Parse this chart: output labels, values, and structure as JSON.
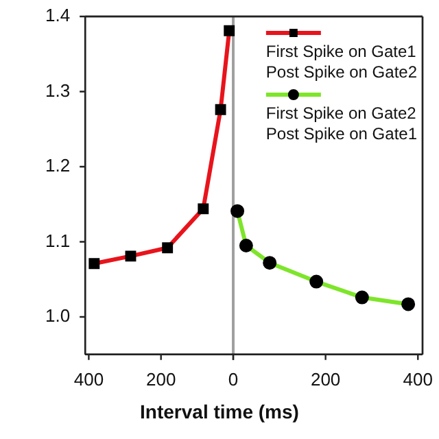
{
  "chart_data": [
    {
      "type": "line",
      "xlabel": "Interval time (ms)",
      "xlim": [
        410,
        0
      ],
      "xticks": [
        400,
        200,
        0
      ],
      "ylim": [
        0.95,
        1.4
      ],
      "yticks": [
        {
          "value": 1,
          "label": "1.0"
        },
        1.1,
        1.2,
        1.3,
        1.4
      ],
      "grid": false,
      "legend": "top right",
      "ref_lines": [
        {
          "axis": "x",
          "value": 0,
          "color": "#a0a0a0"
        }
      ],
      "series": [
        {
          "name": "First Spike on Gate1\nPost Spike on Gate2",
          "color": "#e8141c",
          "marker": "square",
          "x": [
            385,
            284,
            182,
            83,
            35,
            11
          ],
          "values": [
            1.071,
            1.081,
            1.092,
            1.144,
            1.276,
            1.381
          ]
        }
      ]
    },
    {
      "type": "line",
      "xlim": [
        0,
        410
      ],
      "xticks": [
        {
          "value": 0,
          "label": null
        },
        200,
        400
      ],
      "ylim": [
        0.95,
        1.4
      ],
      "tick_labels": "x",
      "grid": false,
      "legend": "top right",
      "series": [
        {
          "name": "First Spike on Gate2\nPost Spike on Gate1",
          "color": "#7ee52a",
          "marker": "circle",
          "x": [
            9,
            28,
            79,
            180,
            279,
            379
          ],
          "values": [
            1.141,
            1.095,
            1.072,
            1.047,
            1.026,
            1.017
          ]
        }
      ]
    }
  ]
}
